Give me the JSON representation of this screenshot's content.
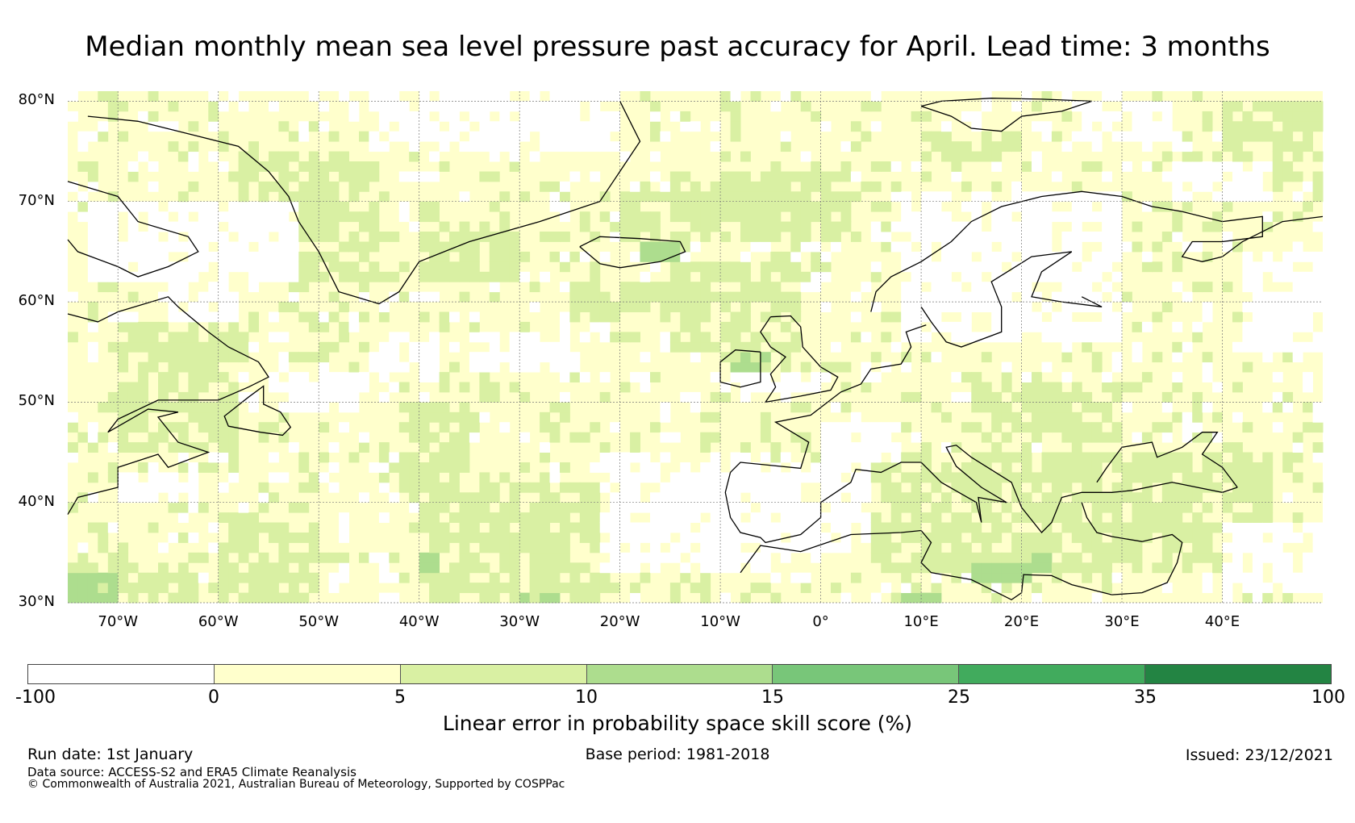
{
  "title": "Median monthly mean sea level pressure past accuracy for April. Lead time: 3 months",
  "map": {
    "region": "North Atlantic and Europe",
    "lat_range_deg": [
      30,
      81
    ],
    "lon_range_deg": [
      -75,
      50
    ],
    "lat_labels": [
      "80°N",
      "70°N",
      "60°N",
      "50°N",
      "40°N",
      "30°N"
    ],
    "lon_labels": [
      "70°W",
      "60°W",
      "50°W",
      "40°W",
      "30°W",
      "20°W",
      "10°W",
      "0°",
      "10°E",
      "20°E",
      "30°E",
      "40°E"
    ],
    "gridlines": true
  },
  "colorbar": {
    "label": "Linear error in probability space skill score (%)",
    "ticks": [
      "-100",
      "0",
      "5",
      "10",
      "15",
      "25",
      "35",
      "100"
    ],
    "colors": [
      "#ffffff",
      "#ffffcc",
      "#d9f0a3",
      "#addd8e",
      "#78c679",
      "#41ab5d",
      "#238443"
    ]
  },
  "footer": {
    "run_date": "Run date: 1st January",
    "base_period": "Base period: 1981-2018",
    "issued": "Issued: 23/12/2021",
    "data_source": "Data source: ACCESS-S2 and ERA5 Climate Reanalysis",
    "copyright": "© Commonwealth of Australia 2021, Australian Bureau of Meteorology, Supported by COSPPac"
  }
}
